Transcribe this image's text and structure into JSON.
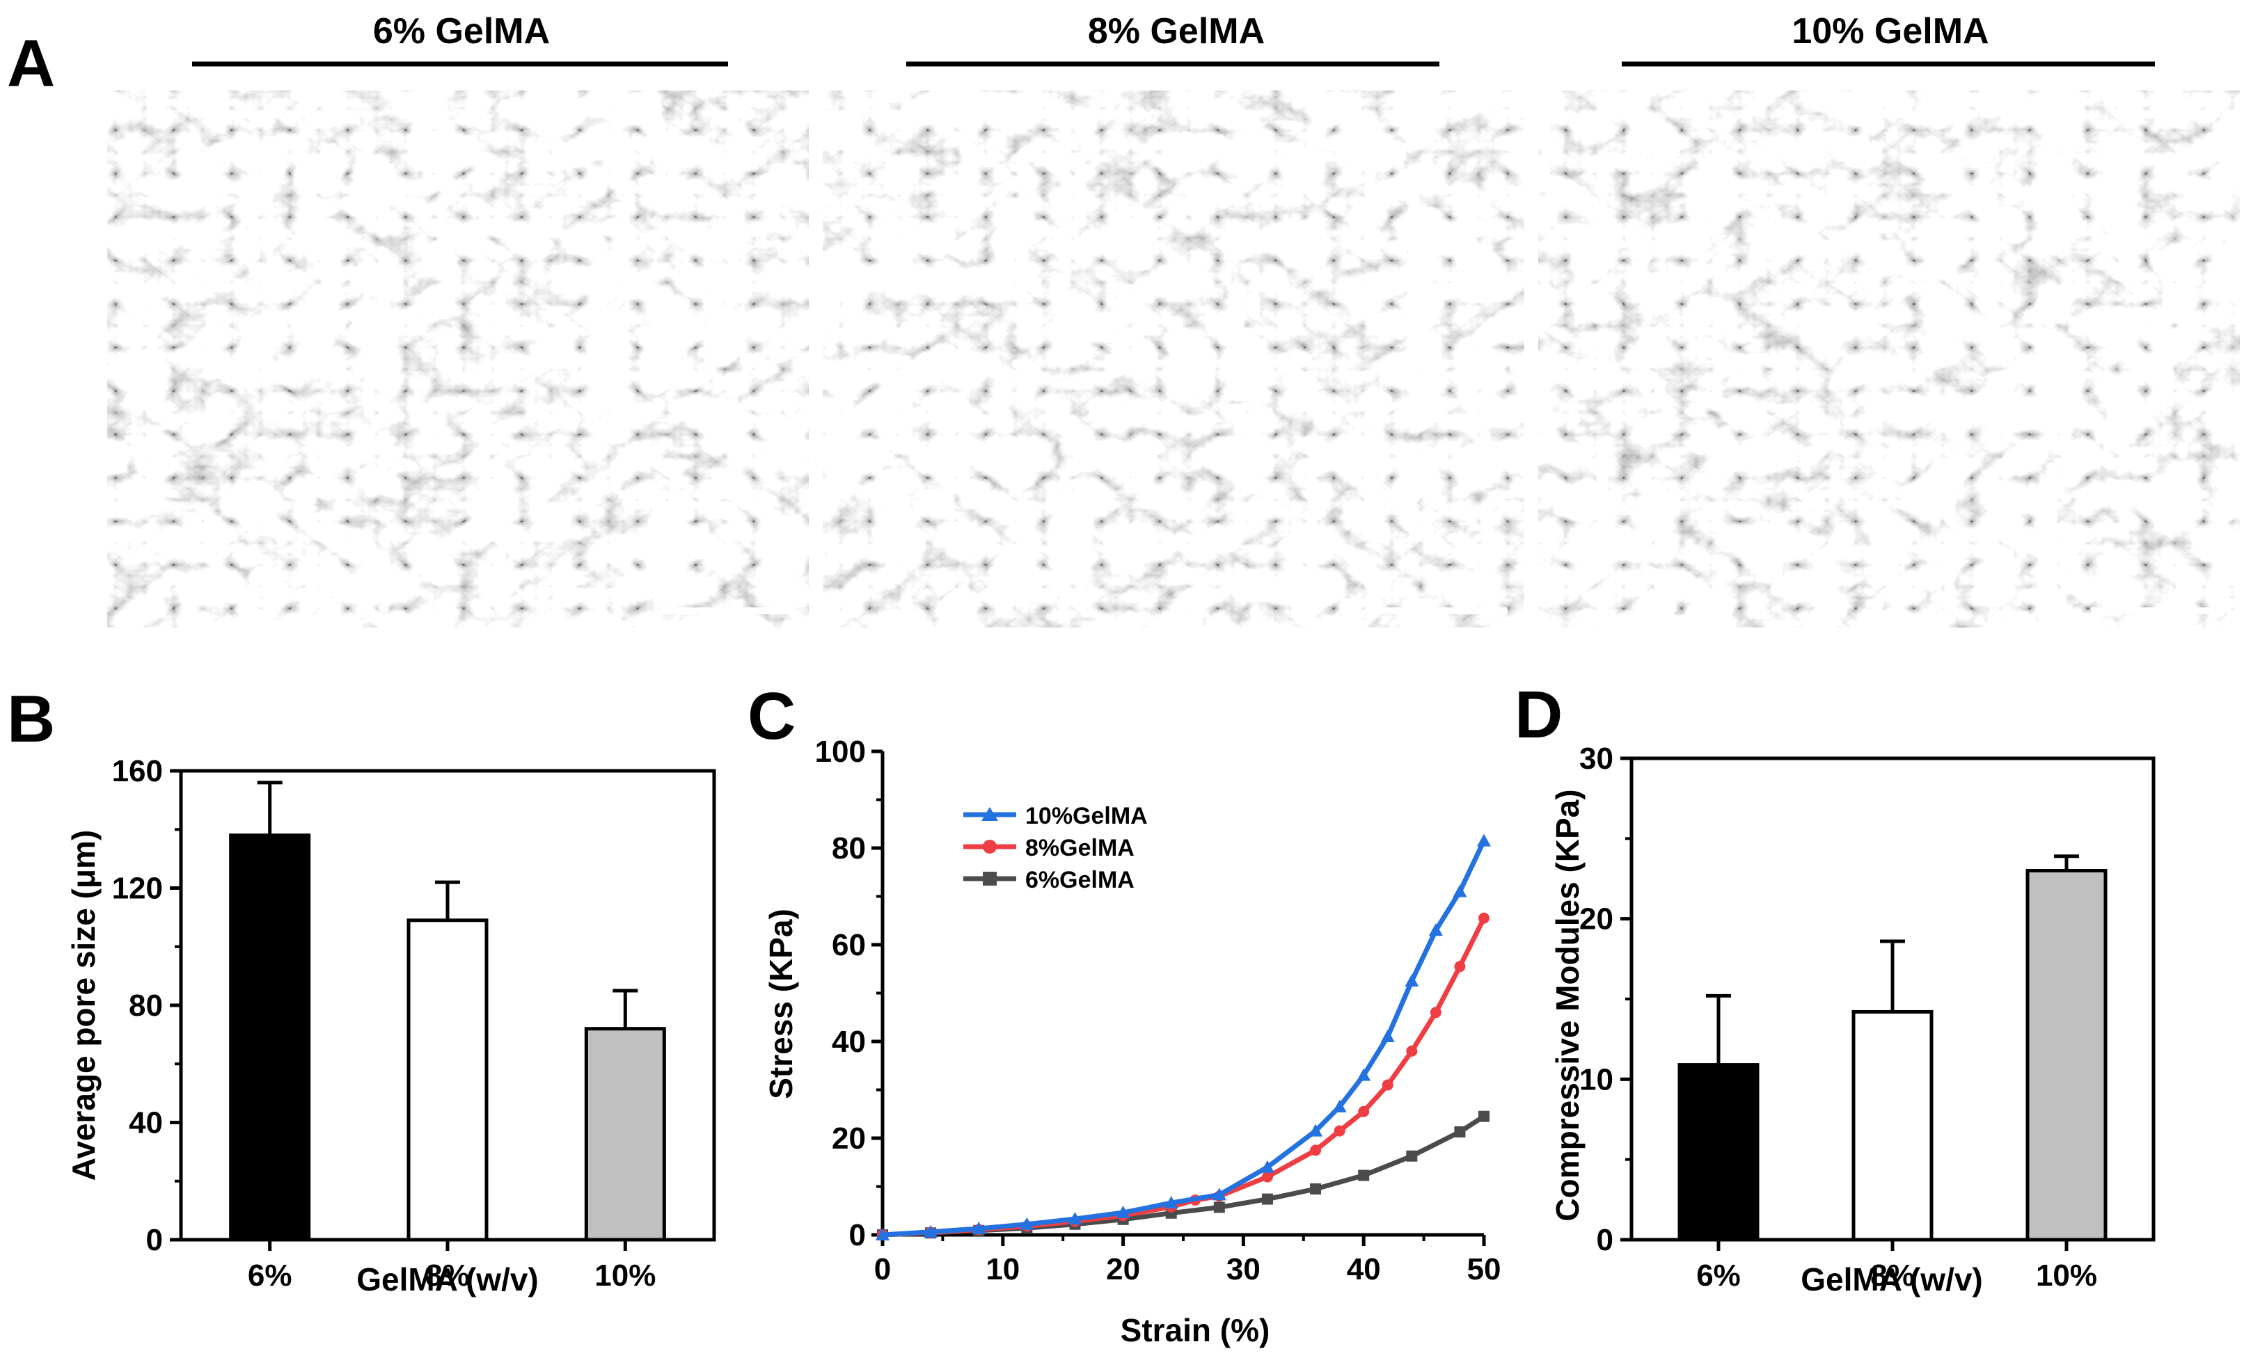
{
  "panel_letters": {
    "a": "A",
    "b": "B",
    "c": "C",
    "d": "D"
  },
  "sem_panels": [
    {
      "label": "6% GelMA"
    },
    {
      "label": "8% GelMA"
    },
    {
      "label": "10% GelMA"
    }
  ],
  "colors": {
    "blue": "#2471e0",
    "red": "#ef3e43",
    "gray": "#4b4b4b",
    "bar_black": "#000000",
    "bar_white": "#ffffff",
    "bar_gray": "#c0c0c0"
  },
  "chart_data": [
    {
      "id": "B",
      "type": "bar",
      "categories": [
        "6%",
        "8%",
        "10%"
      ],
      "values": [
        138,
        109,
        72
      ],
      "errors": [
        18,
        13,
        13
      ],
      "fills": [
        "#000000",
        "#ffffff",
        "#c0c0c0"
      ],
      "xlabel": "GelMA (w/v)",
      "ylabel": "Average pore size (μm)",
      "ylim": [
        0,
        160
      ],
      "yticks": [
        0,
        40,
        80,
        120,
        160
      ]
    },
    {
      "id": "C",
      "type": "line",
      "xlabel": "Strain (%)",
      "ylabel": "Stress (KPa)",
      "xlim": [
        0,
        50
      ],
      "ylim": [
        0,
        100
      ],
      "xticks": [
        0,
        10,
        20,
        30,
        40,
        50
      ],
      "yticks": [
        0,
        20,
        40,
        60,
        80,
        100
      ],
      "legend_position": "top-left",
      "series": [
        {
          "name": "10%GelMA",
          "color": "#2471e0",
          "marker": "triangle",
          "x": [
            0,
            4,
            8,
            12,
            16,
            20,
            24,
            28,
            32,
            36,
            38,
            40,
            42,
            44,
            46,
            48,
            50
          ],
          "y": [
            0,
            0.6,
            1.3,
            2.2,
            3.3,
            4.6,
            6.6,
            8.3,
            14,
            21.5,
            26.5,
            33,
            41,
            52.5,
            63,
            71,
            81.5
          ]
        },
        {
          "name": "8%GelMA",
          "color": "#ef3e43",
          "marker": "circle",
          "x": [
            0,
            4,
            8,
            12,
            16,
            20,
            24,
            26,
            28,
            32,
            36,
            38,
            40,
            42,
            44,
            46,
            48,
            50
          ],
          "y": [
            0,
            0.5,
            1.1,
            1.8,
            2.8,
            4,
            5.8,
            7.2,
            8,
            12,
            17.5,
            21.5,
            25.5,
            31,
            38,
            46,
            55.5,
            65.5
          ]
        },
        {
          "name": "6%GelMA",
          "color": "#4b4b4b",
          "marker": "square",
          "x": [
            0,
            4,
            8,
            12,
            16,
            20,
            24,
            28,
            32,
            36,
            40,
            44,
            48,
            50
          ],
          "y": [
            0,
            0.4,
            0.9,
            1.4,
            2.2,
            3.2,
            4.5,
            5.7,
            7.4,
            9.5,
            12.3,
            16.3,
            21.3,
            24.5
          ]
        }
      ]
    },
    {
      "id": "D",
      "type": "bar",
      "categories": [
        "6%",
        "8%",
        "10%"
      ],
      "values": [
        10.9,
        14.2,
        23.0
      ],
      "errors": [
        4.3,
        4.4,
        0.9
      ],
      "fills": [
        "#000000",
        "#ffffff",
        "#c0c0c0"
      ],
      "xlabel": "GelMA (w/v)",
      "ylabel": "Compressive Modules (KPa)",
      "ylim": [
        0,
        30
      ],
      "yticks": [
        0,
        10,
        20,
        30
      ]
    }
  ]
}
